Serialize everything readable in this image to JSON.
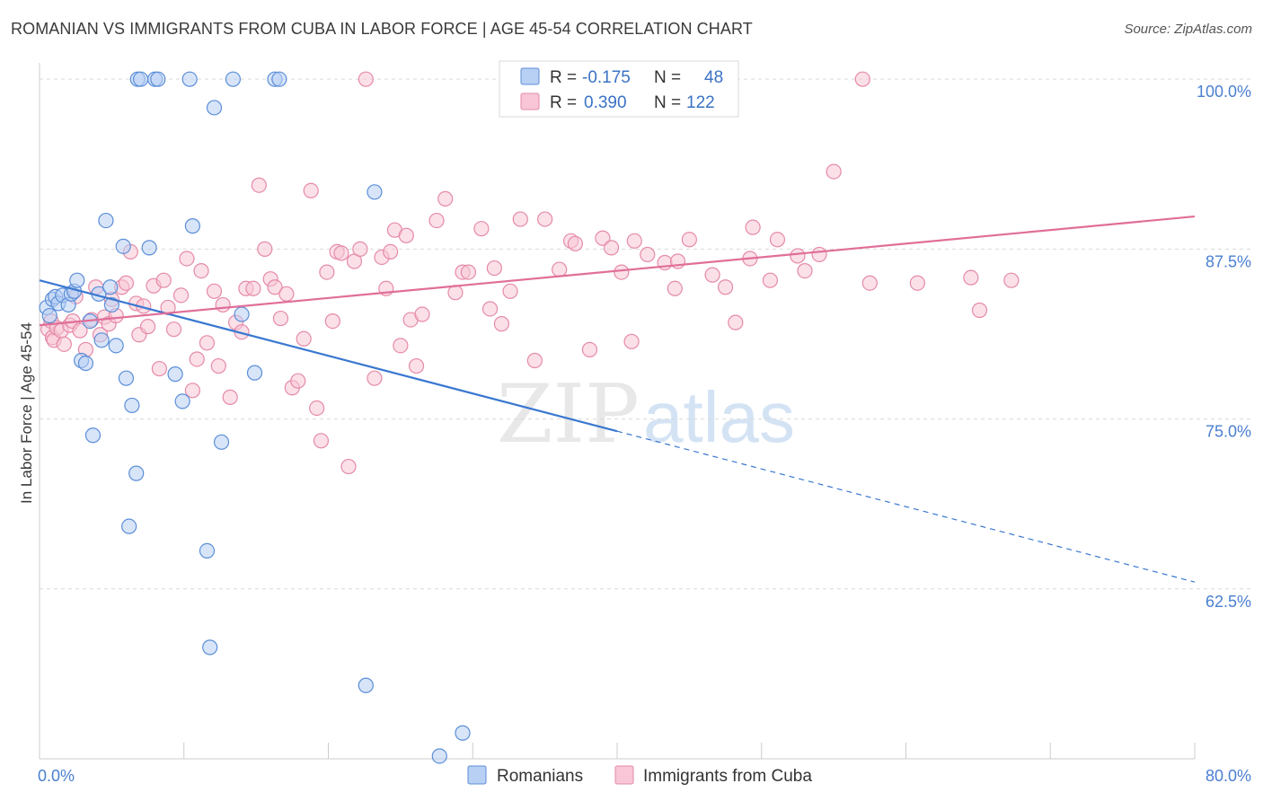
{
  "title": "ROMANIAN VS IMMIGRANTS FROM CUBA IN LABOR FORCE | AGE 45-54 CORRELATION CHART",
  "source": "Source: ZipAtlas.com",
  "watermark": {
    "zip": "ZIP",
    "atlas": "atlas"
  },
  "legend_top": {
    "rows": [
      {
        "r_label": "R =",
        "r_value": "-0.175",
        "n_label": "N =",
        "n_value": "48"
      },
      {
        "r_label": "R =",
        "r_value": "0.390",
        "n_label": "N =",
        "n_value": "122"
      }
    ]
  },
  "legend_bottom": {
    "items": [
      "Romanians",
      "Immigrants from Cuba"
    ]
  },
  "colors": {
    "romanians_fill": "#b8d0f4",
    "romanians_stroke": "#5b8ed8",
    "romanians_line": "#3a78d0",
    "cuba_fill": "#f8c6d6",
    "cuba_stroke": "#e58aa8",
    "cuba_line": "#e06e98",
    "tick_text": "#4a7fd0",
    "grid": "#d9d9d9"
  },
  "chart_data": {
    "type": "scatter",
    "xlabel": "",
    "ylabel": "In Labor Force | Age 45-54",
    "x_ticks": [
      "0.0%",
      "80.0%"
    ],
    "y_ticks": [
      "100.0%",
      "87.5%",
      "75.0%",
      "62.5%"
    ],
    "xlim": [
      0,
      80
    ],
    "ylim": [
      50,
      101.2
    ],
    "grid": true,
    "legend_placement": "top-center",
    "series": [
      {
        "name": "Romanians",
        "r": -0.175,
        "n": 48,
        "trend": {
          "x0": 0,
          "y0": 85.2,
          "x1": 40,
          "y1": 74.1,
          "dash_to_x": 80,
          "dash_to_y": 63.0
        },
        "points": [
          [
            0.5,
            83.2
          ],
          [
            0.7,
            82.6
          ],
          [
            0.9,
            83.8
          ],
          [
            1.1,
            84.0
          ],
          [
            1.3,
            83.5
          ],
          [
            1.6,
            84.1
          ],
          [
            2.0,
            83.4
          ],
          [
            2.2,
            84.2
          ],
          [
            2.4,
            84.4
          ],
          [
            2.6,
            85.2
          ],
          [
            2.9,
            79.3
          ],
          [
            3.2,
            79.1
          ],
          [
            3.5,
            82.2
          ],
          [
            3.7,
            73.8
          ],
          [
            4.1,
            84.2
          ],
          [
            4.3,
            80.8
          ],
          [
            4.6,
            89.6
          ],
          [
            4.9,
            84.7
          ],
          [
            5.0,
            83.4
          ],
          [
            5.3,
            80.4
          ],
          [
            5.8,
            87.7
          ],
          [
            6.0,
            78.0
          ],
          [
            6.2,
            67.1
          ],
          [
            6.4,
            76.0
          ],
          [
            6.7,
            71.0
          ],
          [
            6.8,
            100.0
          ],
          [
            7.0,
            100.0
          ],
          [
            7.6,
            87.6
          ],
          [
            8.0,
            100.0
          ],
          [
            8.2,
            100.0
          ],
          [
            9.4,
            78.3
          ],
          [
            9.9,
            76.3
          ],
          [
            10.4,
            100.0
          ],
          [
            10.6,
            89.2
          ],
          [
            11.6,
            65.3
          ],
          [
            11.8,
            58.2
          ],
          [
            12.1,
            97.9
          ],
          [
            12.6,
            73.3
          ],
          [
            13.4,
            100.0
          ],
          [
            14.0,
            82.7
          ],
          [
            14.9,
            78.4
          ],
          [
            16.3,
            100.0
          ],
          [
            16.6,
            100.0
          ],
          [
            22.6,
            55.4
          ],
          [
            23.2,
            91.7
          ],
          [
            27.7,
            50.2
          ],
          [
            29.3,
            51.9
          ]
        ]
      },
      {
        "name": "Immigrants from Cuba",
        "r": 0.39,
        "n": 122,
        "trend": {
          "x0": 0,
          "y0": 81.9,
          "x1": 80,
          "y1": 89.9
        },
        "points": [
          [
            0.6,
            81.6
          ],
          [
            0.8,
            82.2
          ],
          [
            0.9,
            81.0
          ],
          [
            1.0,
            80.8
          ],
          [
            1.2,
            81.7
          ],
          [
            1.5,
            81.5
          ],
          [
            1.7,
            80.5
          ],
          [
            2.1,
            81.9
          ],
          [
            2.3,
            82.2
          ],
          [
            2.5,
            84.0
          ],
          [
            2.8,
            81.5
          ],
          [
            3.2,
            80.1
          ],
          [
            3.6,
            82.3
          ],
          [
            3.9,
            84.7
          ],
          [
            4.2,
            81.2
          ],
          [
            4.5,
            82.5
          ],
          [
            4.8,
            82.0
          ],
          [
            5.0,
            83.8
          ],
          [
            5.3,
            82.6
          ],
          [
            5.7,
            84.7
          ],
          [
            6.0,
            85.0
          ],
          [
            6.3,
            87.3
          ],
          [
            6.7,
            83.5
          ],
          [
            6.9,
            81.2
          ],
          [
            7.2,
            83.3
          ],
          [
            7.5,
            81.8
          ],
          [
            7.9,
            84.8
          ],
          [
            8.3,
            78.7
          ],
          [
            8.6,
            85.2
          ],
          [
            8.9,
            83.2
          ],
          [
            9.3,
            81.6
          ],
          [
            9.8,
            84.1
          ],
          [
            10.2,
            86.8
          ],
          [
            10.6,
            77.1
          ],
          [
            10.9,
            79.4
          ],
          [
            11.2,
            85.9
          ],
          [
            11.6,
            80.6
          ],
          [
            12.1,
            84.4
          ],
          [
            12.4,
            78.9
          ],
          [
            12.7,
            83.4
          ],
          [
            13.2,
            76.6
          ],
          [
            13.6,
            82.1
          ],
          [
            14.0,
            81.4
          ],
          [
            14.3,
            84.6
          ],
          [
            14.8,
            84.6
          ],
          [
            15.2,
            92.2
          ],
          [
            15.6,
            87.5
          ],
          [
            16.0,
            85.3
          ],
          [
            16.3,
            84.7
          ],
          [
            16.7,
            82.4
          ],
          [
            17.1,
            84.2
          ],
          [
            17.5,
            77.3
          ],
          [
            17.9,
            77.8
          ],
          [
            18.3,
            80.9
          ],
          [
            18.8,
            91.8
          ],
          [
            19.2,
            75.8
          ],
          [
            19.5,
            73.4
          ],
          [
            19.9,
            85.8
          ],
          [
            20.3,
            82.2
          ],
          [
            20.6,
            87.3
          ],
          [
            20.9,
            87.2
          ],
          [
            21.4,
            71.5
          ],
          [
            21.8,
            86.6
          ],
          [
            22.2,
            87.5
          ],
          [
            22.6,
            100.0
          ],
          [
            23.2,
            78.0
          ],
          [
            23.7,
            86.9
          ],
          [
            24.0,
            84.6
          ],
          [
            24.3,
            87.3
          ],
          [
            24.6,
            88.9
          ],
          [
            25.0,
            80.4
          ],
          [
            25.4,
            88.5
          ],
          [
            25.7,
            82.3
          ],
          [
            26.1,
            78.9
          ],
          [
            26.5,
            82.7
          ],
          [
            27.5,
            89.6
          ],
          [
            28.1,
            91.2
          ],
          [
            28.8,
            84.3
          ],
          [
            29.3,
            85.8
          ],
          [
            29.7,
            85.8
          ],
          [
            30.6,
            89.0
          ],
          [
            31.2,
            83.1
          ],
          [
            31.5,
            86.1
          ],
          [
            32.0,
            82.0
          ],
          [
            32.6,
            84.4
          ],
          [
            33.3,
            89.7
          ],
          [
            34.3,
            79.3
          ],
          [
            35.0,
            89.7
          ],
          [
            36.0,
            86.0
          ],
          [
            36.8,
            88.1
          ],
          [
            37.1,
            87.9
          ],
          [
            38.1,
            80.1
          ],
          [
            39.0,
            88.3
          ],
          [
            39.6,
            87.6
          ],
          [
            40.3,
            85.8
          ],
          [
            41.0,
            80.7
          ],
          [
            41.2,
            88.1
          ],
          [
            42.1,
            87.1
          ],
          [
            43.3,
            86.5
          ],
          [
            44.0,
            84.6
          ],
          [
            44.2,
            86.6
          ],
          [
            45.0,
            88.2
          ],
          [
            46.6,
            85.6
          ],
          [
            47.5,
            84.7
          ],
          [
            48.2,
            82.1
          ],
          [
            49.2,
            86.8
          ],
          [
            49.4,
            89.1
          ],
          [
            50.6,
            85.2
          ],
          [
            51.1,
            88.2
          ],
          [
            52.5,
            87.0
          ],
          [
            53.0,
            85.9
          ],
          [
            54.0,
            87.1
          ],
          [
            55.0,
            93.2
          ],
          [
            57.0,
            100.0
          ],
          [
            57.5,
            85.0
          ],
          [
            60.8,
            85.0
          ],
          [
            64.5,
            85.4
          ],
          [
            65.1,
            83.0
          ],
          [
            67.3,
            85.2
          ]
        ]
      }
    ]
  }
}
